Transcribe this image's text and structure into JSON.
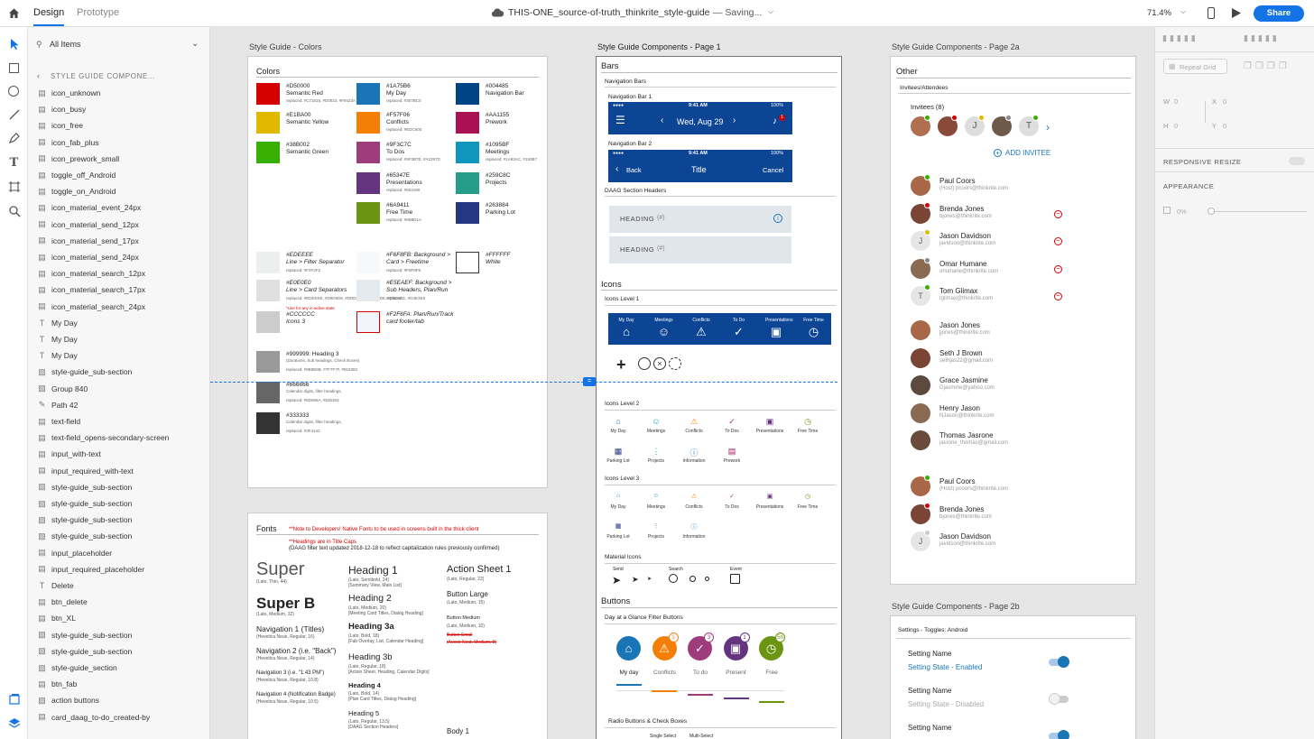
{
  "topbar": {
    "tab_design": "Design",
    "tab_prototype": "Prototype",
    "doc_title": "THIS-ONE_source-of-truth_thinkrite_style-guide",
    "status": "— Saving...",
    "zoom": "71.4%",
    "share_label": "Share"
  },
  "layers": {
    "filter_label": "All Items",
    "breadcrumb": "STYLE GUIDE COMPONE...",
    "items": [
      {
        "label": "icon_unknown",
        "icon": "symbol-icon"
      },
      {
        "label": "icon_busy",
        "icon": "symbol-icon"
      },
      {
        "label": "icon_free",
        "icon": "symbol-icon"
      },
      {
        "label": "icon_fab_plus",
        "icon": "symbol-icon"
      },
      {
        "label": "icon_prework_small",
        "icon": "symbol-icon"
      },
      {
        "label": "toggle_off_Android",
        "icon": "symbol-icon"
      },
      {
        "label": "toggle_on_Android",
        "icon": "symbol-icon"
      },
      {
        "label": "icon_material_event_24px",
        "icon": "symbol-icon"
      },
      {
        "label": "icon_material_send_12px",
        "icon": "symbol-icon"
      },
      {
        "label": "icon_material_send_17px",
        "icon": "symbol-icon"
      },
      {
        "label": "icon_material_send_24px",
        "icon": "symbol-icon"
      },
      {
        "label": "icon_material_search_12px",
        "icon": "symbol-icon"
      },
      {
        "label": "icon_material_search_17px",
        "icon": "symbol-icon"
      },
      {
        "label": "icon_material_search_24px",
        "icon": "symbol-icon"
      },
      {
        "label": "My Day",
        "icon": "text-icon"
      },
      {
        "label": "My Day",
        "icon": "text-icon"
      },
      {
        "label": "My Day",
        "icon": "text-icon"
      },
      {
        "label": "style-guide_sub-section",
        "icon": "folder-icon"
      },
      {
        "label": "Group 840",
        "icon": "folder-icon"
      },
      {
        "label": "Path 42",
        "icon": "path-icon"
      },
      {
        "label": "text-field",
        "icon": "symbol-icon"
      },
      {
        "label": "text-field_opens-secondary-screen",
        "icon": "symbol-icon"
      },
      {
        "label": "input_with-text",
        "icon": "symbol-icon"
      },
      {
        "label": "input_required_with-text",
        "icon": "symbol-icon"
      },
      {
        "label": "style-guide_sub-section",
        "icon": "folder-icon"
      },
      {
        "label": "style-guide_sub-section",
        "icon": "folder-icon"
      },
      {
        "label": "style-guide_sub-section",
        "icon": "folder-icon"
      },
      {
        "label": "style-guide_sub-section",
        "icon": "folder-icon"
      },
      {
        "label": "input_placeholder",
        "icon": "symbol-icon"
      },
      {
        "label": "input_required_placeholder",
        "icon": "symbol-icon"
      },
      {
        "label": "Delete",
        "icon": "text-icon"
      },
      {
        "label": "btn_delete",
        "icon": "symbol-icon"
      },
      {
        "label": "btn_XL",
        "icon": "symbol-icon"
      },
      {
        "label": "style-guide_sub-section",
        "icon": "folder-icon"
      },
      {
        "label": "style-guide_sub-section",
        "icon": "folder-icon"
      },
      {
        "label": "style-guide_section",
        "icon": "folder-icon"
      },
      {
        "label": "btn_fab",
        "icon": "symbol-icon"
      },
      {
        "label": "action buttons",
        "icon": "folder-icon"
      },
      {
        "label": "card_daag_to-do_created-by",
        "icon": "symbol-icon"
      }
    ]
  },
  "artboards": {
    "colors_title": "Style Guide - Colors",
    "page1_title": "Style Guide Components - Page 1",
    "page2a_title": "Style Guide Components - Page 2a",
    "page2b_title": "Style Guide Components - Page 2b"
  },
  "colors": {
    "heading": "Colors",
    "swatches": [
      {
        "hex": "#D50000",
        "name": "Semantic Red",
        "note": "replaced: #C71616, #D0023, #F9423A",
        "color": "#D50000"
      },
      {
        "hex": "#E1BA00",
        "name": "Semantic Yellow",
        "note": "",
        "color": "#E1BA00"
      },
      {
        "hex": "#38B002",
        "name": "Semantic Green",
        "note": "",
        "color": "#38B002"
      },
      {
        "hex": "#1A75B6",
        "name": "My Day",
        "note": "replaced: #307BC0",
        "color": "#1A75B6"
      },
      {
        "hex": "#F57F06",
        "name": "Conflicts",
        "note": "replaced: #EDC600",
        "color": "#F57F06"
      },
      {
        "hex": "#9F3C7C",
        "name": "To Dos",
        "note": "replaced: #9F3B7E, #A2397D",
        "color": "#9F3C7C"
      },
      {
        "hex": "#65347E",
        "name": "Presentations",
        "note": "replaced: #663180",
        "color": "#65347E"
      },
      {
        "hex": "#6A9411",
        "name": "Free Time",
        "note": "replaced: #6B8D1A",
        "color": "#6A9411"
      },
      {
        "hex": "#004485",
        "name": "Navigation Bar",
        "note": "",
        "color": "#004485"
      },
      {
        "hex": "#AA1155",
        "name": "Prework",
        "note": "",
        "color": "#AA1155"
      },
      {
        "hex": "#1095BF",
        "name": "Meetings",
        "note": "replaced: #1A93AC, #193B7",
        "color": "#1095BF"
      },
      {
        "hex": "#259C8C",
        "name": "Projects",
        "note": "",
        "color": "#259C8C"
      },
      {
        "hex": "#263884",
        "name": "Parking Lot",
        "note": "",
        "color": "#263884"
      }
    ],
    "neutrals": [
      {
        "hex": "#EDEEEE",
        "name": "Line > Filter Separator",
        "note": "replaced: #F2F2F2",
        "color": "#EDEEEE"
      },
      {
        "hex": "#E0E0E0",
        "name": "Line > Card Separators",
        "note": "replaced: #EDEEEE, #D9D9D9, #DDDDDD, #D8D8D8, #D0D0CE, #D4E3E6",
        "note2": "*Use for any in-active state",
        "color": "#E0E0E0"
      },
      {
        "hex": "#CCCCCC",
        "name": "Icons 3",
        "note": "",
        "color": "#CCCCCC"
      },
      {
        "hex": "#F6F8FB: Background >",
        "name": "Card > Freetime",
        "note": "replaced: #F8F8F8",
        "color": "#F6F8FB"
      },
      {
        "hex": "#E5EAEF: Background >",
        "name": "Sub Headers, Plan/Run",
        "note": "replaced:",
        "color": "#E5EAEF"
      },
      {
        "hex": "#F2F6FA: Plan/Run/Track",
        "name": "card footer/tab",
        "note": "",
        "color": "#F2F6FA"
      },
      {
        "hex": "#FFFFFF",
        "name": "White",
        "note": "",
        "color": "#FFFFFF"
      }
    ],
    "grays": [
      {
        "hex": "#999999: Heading 3",
        "sub": "(Durations, Sub headings, Check Boxes)",
        "note": "replaced: #9B9B9B, #7F7F7F, #818383",
        "color": "#999999"
      },
      {
        "hex": "#666666",
        "sub": "Calendar digits, filter headings,",
        "note": "replaced: #6D666A, #535353",
        "color": "#666666"
      },
      {
        "hex": "#333333",
        "sub": "Calendar digits, filter headings,",
        "note": "replaced: #3F4142",
        "color": "#333333"
      }
    ]
  },
  "fonts": {
    "heading": "Fonts",
    "note1": "**Note to Developers!  Native Fonts to be used in screens built in the thick client",
    "note2": "**Headings are in Title Caps",
    "note3": "(DAAG filter text updated 2018-12-18 to reflect capitalization rules previously confirmed)",
    "col1": [
      {
        "label": "Super",
        "sub": "(Lato, Thin, 44)"
      },
      {
        "label": "Super B",
        "sub": "(Lato, Medium, 32)"
      },
      {
        "label": "Navigation 1 (Titles)",
        "sub": "(Hevetica Neue, Regular, 16)"
      },
      {
        "label": "Navigation 2 (i.e. \"Back\")",
        "sub": "(Hevetica Neue, Regular, 14)"
      },
      {
        "label": "Navigation 3 (i.e. \"1:43 PM\")",
        "sub": "(Hevetica Neue, Regular, 10.8)"
      },
      {
        "label": "Navigation 4 (Notification Badge)",
        "sub": "(Hevetica Neue, Regular, 10.5)"
      }
    ],
    "col2": [
      {
        "label": "Heading 1",
        "sub": "(Lato, Semibold, 24)",
        "sub2": "[Summary View, Main List]"
      },
      {
        "label": "Heading 2",
        "sub": "(Lato, Medium, 20)",
        "sub2": "[Meeting Card Titles, Dialog Heading]"
      },
      {
        "label": "Heading 3a",
        "sub": "(Lato, Bold, 18)",
        "sub2": "[Fab Overlay, List, Calendar Heading]"
      },
      {
        "label": "Heading 3b",
        "sub": "(Lato, Regular, 18)",
        "sub2": "[Action Sheet, Heading, Calendar Digits]"
      },
      {
        "label": "Heading 4",
        "sub": "(Lato, Bold, 14)",
        "sub2": "[Plan Card Titles, Dialog Heading]"
      },
      {
        "label": "Heading 5",
        "sub": "(Lato, Regular, 13.5)",
        "sub2": "[DAAG Section Headers]"
      }
    ],
    "col3": [
      {
        "label": "Action Sheet 1",
        "sub": "(Lato, Regular, 22)"
      },
      {
        "label": "Button Large",
        "sub": "(Lato, Medium, 15)"
      },
      {
        "label": "Button Medium",
        "sub": "(Lato, Medium, 10)"
      },
      {
        "label": "Button Small",
        "sub": "(Avenir Next, Medium, 8)"
      },
      {
        "label": "Body 1",
        "sub": ""
      }
    ]
  },
  "page1": {
    "bars": "Bars",
    "nav_bars": "Navigation Bars",
    "nav_bar_1": "Navigation Bar 1",
    "nav_bar_2": "Navigation Bar 2",
    "time": "9:41 AM",
    "battery": "100%",
    "date": "Wed, Aug 29",
    "badge": "1",
    "back": "Back",
    "title": "Title",
    "cancel": "Cancel",
    "daag_headers": "DAAG Section Headers",
    "heading_label": "HEADING",
    "heading_hash": "(#)",
    "icons": "Icons",
    "icons_level_1": "Icons Level 1",
    "level1": [
      "My Day",
      "Meetings",
      "Conflicts",
      "To Do",
      "Presentations",
      "Free Time"
    ],
    "icons_level_2": "Icons Level 2",
    "level2_row1": [
      "My Day",
      "Meetings",
      "Conflicts",
      "To Dos",
      "Presentations",
      "Free Time"
    ],
    "level2_row2": [
      "Parking Lot",
      "Projects",
      "Information",
      "Prework"
    ],
    "icons_level_3": "Icons Level 3",
    "level3_row1": [
      "My Day",
      "Meetings",
      "Conflicts",
      "To Dos",
      "Presentations",
      "Free Time"
    ],
    "level3_row2": [
      "Parking Lot",
      "Projects",
      "Information"
    ],
    "material_icons": "Material Icons",
    "material_labels": [
      "Send",
      "Search",
      "Event"
    ],
    "buttons": "Buttons",
    "daag_filter": "Day at a Glance Filter Buttons",
    "filters": [
      {
        "label": "My day",
        "badge": "",
        "color": "#1A75B6"
      },
      {
        "label": "Conflicts",
        "badge": "1",
        "color": "#F57F06"
      },
      {
        "label": "To do",
        "badge": "3",
        "color": "#9F3C7C"
      },
      {
        "label": "Present",
        "badge": "1",
        "color": "#65347E"
      },
      {
        "label": "Free",
        "badge": "5h",
        "color": "#6A9411"
      }
    ],
    "radio": "Radio Buttons & Check Boxes",
    "single_select": "Single Select",
    "multi_select": "Multi-Select"
  },
  "page2a": {
    "other": "Other",
    "invitees_hdr": "Invitees/Attendees",
    "invitees_count": "Invitees (8)",
    "add_invitee": "ADD INVITEE",
    "group1": [
      {
        "name": "Paul Coors",
        "email": "(Host) pcoors@thinkrite.com",
        "remove": false,
        "initial": ""
      },
      {
        "name": "Brenda Jones",
        "email": "bjones@thinkrite.com",
        "remove": true,
        "initial": ""
      },
      {
        "name": "Jason Davidson",
        "email": "javidson@thinkrite.com",
        "remove": true,
        "initial": "J"
      },
      {
        "name": "Omar Humane",
        "email": "ohumane@thinkrite.com",
        "remove": true,
        "initial": ""
      },
      {
        "name": "Tom Glimax",
        "email": "tglimax@thinkrite.com",
        "remove": true,
        "initial": "T"
      }
    ],
    "group2": [
      {
        "name": "Jason Jones",
        "email": "jjones@thinkrite.com"
      },
      {
        "name": "Seth  J Brown",
        "email": "sethjas22@gmail.com"
      },
      {
        "name": "Grace Jasmine",
        "email": "Gjasmine@yahoo.com"
      },
      {
        "name": "Henry Jason",
        "email": "NJason@thinkrite.com"
      },
      {
        "name": "Thomas Jasrone",
        "email": "jasrone_thomas@gmail.com"
      }
    ],
    "group3": [
      {
        "name": "Paul Coors",
        "email": "(Host) pcoors@thinkrite.com",
        "initial": ""
      },
      {
        "name": "Brenda Jones",
        "email": "bjones@thinkrite.com",
        "initial": ""
      },
      {
        "name": "Jason Davidson",
        "email": "javidson@thinkrite.com",
        "initial": "J"
      }
    ]
  },
  "page2b": {
    "settings_hdr": "Settings - Toggles: Android",
    "settings": [
      {
        "name": "Setting Name",
        "state": "Setting State - Enabled",
        "on": true
      },
      {
        "name": "Setting Name",
        "state": "Setting State - Disabled",
        "on": false
      },
      {
        "name": "Setting Name",
        "state": "",
        "on": true
      }
    ]
  },
  "props": {
    "repeat_grid": "Repeat Grid",
    "w_label": "W",
    "w_value": "0",
    "x_label": "X",
    "x_value": "0",
    "h_label": "H",
    "h_value": "0",
    "y_label": "Y",
    "y_value": "0",
    "responsive_resize": "RESPONSIVE RESIZE",
    "appearance": "APPEARANCE",
    "opacity": "0%"
  }
}
